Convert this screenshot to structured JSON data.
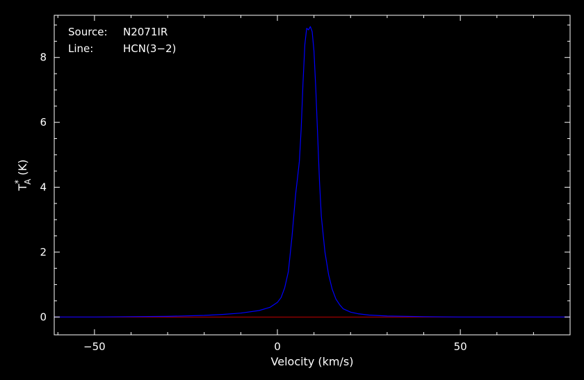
{
  "chart_data": {
    "type": "line",
    "xlabel": "Velocity (km/s)",
    "ylabel": {
      "base": "T",
      "sup": "*",
      "sub": "A",
      "unit": " (K)"
    },
    "xlim": [
      -61,
      80
    ],
    "ylim": [
      -0.55,
      9.3
    ],
    "xticks": [
      -50,
      0,
      50
    ],
    "yticks": [
      0,
      2,
      4,
      6,
      8
    ],
    "grid": false,
    "annotations": [
      {
        "label": "Source:",
        "value": "N2071IR"
      },
      {
        "label": "Line:",
        "value": "HCN(3−2)"
      }
    ],
    "baseline": {
      "y": 0,
      "color": "#c00000"
    },
    "series": [
      {
        "color": "#0000ff",
        "x": [
          -61,
          -50,
          -40,
          -30,
          -20,
          -15,
          -10,
          -5,
          -2,
          0,
          1,
          2,
          3,
          4,
          5,
          5.5,
          6,
          6.5,
          7,
          7.5,
          8,
          8.5,
          9,
          9.5,
          10,
          10.5,
          11,
          11.5,
          12,
          13,
          14,
          15,
          16,
          17,
          18,
          20,
          22,
          25,
          30,
          40,
          50,
          60,
          70,
          80
        ],
        "y": [
          0.0,
          0.0,
          0.01,
          0.02,
          0.05,
          0.08,
          0.12,
          0.2,
          0.3,
          0.45,
          0.6,
          0.9,
          1.4,
          2.5,
          3.8,
          4.3,
          4.8,
          5.8,
          7.2,
          8.4,
          8.9,
          8.85,
          8.95,
          8.8,
          8.2,
          7.0,
          5.6,
          4.2,
          3.1,
          2.0,
          1.3,
          0.85,
          0.55,
          0.38,
          0.25,
          0.15,
          0.1,
          0.06,
          0.03,
          0.01,
          0.0,
          0.0,
          0.0,
          0.0
        ]
      }
    ]
  }
}
